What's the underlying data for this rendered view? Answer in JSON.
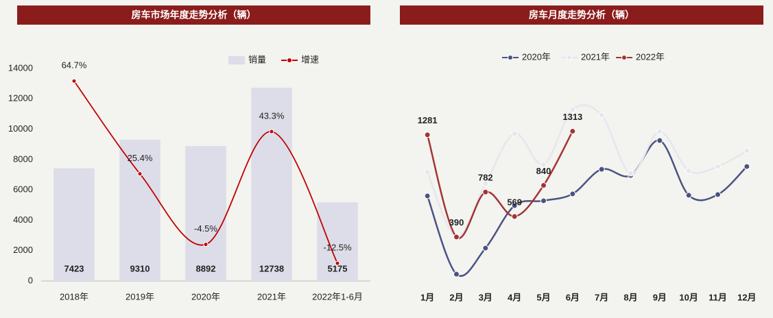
{
  "chart_data": [
    {
      "type": "bar",
      "title": "房车市场年度走势分析（辆）",
      "categories": [
        "2018年",
        "2019年",
        "2020年",
        "2021年",
        "2022年1-6月"
      ],
      "series": [
        {
          "name": "销量",
          "color": "#dcdde8",
          "values": [
            7423,
            9310,
            8892,
            12738,
            5175
          ],
          "data_labels": true
        },
        {
          "name": "增速",
          "color": "#c00000",
          "type": "line",
          "axis": "y2",
          "values": [
            64.7,
            25.4,
            -4.5,
            43.3,
            -12.5
          ],
          "value_labels": [
            "64.7%",
            "25.4%",
            "-4.5%",
            "43.3%",
            "-12.5%"
          ]
        }
      ],
      "ylim": [
        0,
        14000
      ],
      "yticks": [
        0,
        2000,
        4000,
        6000,
        8000,
        10000,
        12000,
        14000
      ],
      "y2lim": [
        -20,
        70
      ],
      "legend": "top"
    },
    {
      "type": "line",
      "title": "房车月度走势分析（辆）",
      "categories": [
        "1月",
        "2月",
        "3月",
        "4月",
        "5月",
        "6月",
        "7月",
        "8月",
        "9月",
        "10月",
        "11月",
        "12月"
      ],
      "series": [
        {
          "name": "2020年",
          "color": "#4a5282",
          "values": [
            748,
            66,
            293,
            664,
            706,
            766,
            981,
            927,
            1232,
            754,
            760,
            1005
          ]
        },
        {
          "name": "2021年",
          "color": "#e6e6ee",
          "values": [
            957,
            395,
            855,
            1292,
            1023,
            1501,
            1453,
            945,
            1310,
            969,
            1005,
            1142
          ]
        },
        {
          "name": "2022年",
          "color": "#a33434",
          "values": [
            1281,
            390,
            782,
            569,
            840,
            1313,
            null,
            null,
            null,
            null,
            null,
            null
          ],
          "data_labels": true
        }
      ],
      "ylim": [
        0,
        1860
      ],
      "legend": "top"
    }
  ]
}
